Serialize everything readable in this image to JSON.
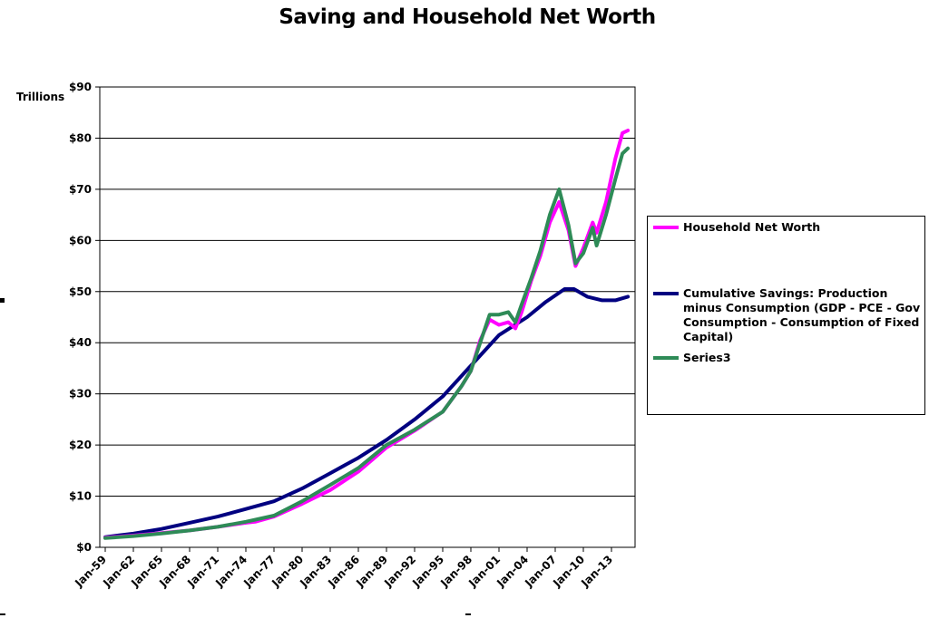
{
  "chart_data": {
    "type": "line",
    "title": "Saving and Household Net Worth",
    "ylabel": "Trillions",
    "xlabel": "",
    "ylim": [
      0,
      90
    ],
    "yticks": [
      "$0",
      "$10",
      "$20",
      "$30",
      "$40",
      "$50",
      "$60",
      "$70",
      "$80",
      "$90"
    ],
    "xticks": [
      "Jan-59",
      "Jan-62",
      "Jan-65",
      "Jan-68",
      "Jan-71",
      "Jan-74",
      "Jan-77",
      "Jan-80",
      "Jan-83",
      "Jan-86",
      "Jan-89",
      "Jan-92",
      "Jan-95",
      "Jan-98",
      "Jan-01",
      "Jan-04",
      "Jan-07",
      "Jan-10",
      "Jan-13"
    ],
    "grid": "horizontal",
    "legend_position": "right",
    "series": [
      {
        "name": "Household Net Worth",
        "color": "#ff00ff",
        "points": [
          [
            "1959-01",
            1.9
          ],
          [
            "1962-01",
            2.3
          ],
          [
            "1965-01",
            2.8
          ],
          [
            "1968-01",
            3.3
          ],
          [
            "1971-01",
            4.0
          ],
          [
            "1974-01",
            4.8
          ],
          [
            "1975-01",
            5.0
          ],
          [
            "1977-01",
            6.0
          ],
          [
            "1980-01",
            8.5
          ],
          [
            "1983-01",
            11.2
          ],
          [
            "1986-01",
            14.8
          ],
          [
            "1989-01",
            19.5
          ],
          [
            "1992-01",
            22.8
          ],
          [
            "1995-01",
            26.5
          ],
          [
            "1997-01",
            31.5
          ],
          [
            "1998-01",
            34.5
          ],
          [
            "1999-01",
            40.5
          ],
          [
            "2000-01",
            44.5
          ],
          [
            "2001-01",
            43.5
          ],
          [
            "2002-01",
            44.0
          ],
          [
            "2002-10",
            42.8
          ],
          [
            "2003-06",
            46.0
          ],
          [
            "2004-06",
            52.0
          ],
          [
            "2005-06",
            57.0
          ],
          [
            "2006-06",
            63.5
          ],
          [
            "2007-06",
            67.5
          ],
          [
            "2008-06",
            62.0
          ],
          [
            "2009-03",
            55.0
          ],
          [
            "2010-01",
            58.5
          ],
          [
            "2011-01",
            63.5
          ],
          [
            "2011-06",
            61.5
          ],
          [
            "2012-06",
            67.5
          ],
          [
            "2013-06",
            76.0
          ],
          [
            "2014-03",
            81.0
          ],
          [
            "2014-10",
            81.5
          ]
        ]
      },
      {
        "name": "Cumulative Savings: Production minus Consumption (GDP - PCE - Gov Consumption - Consumption of Fixed Capital)",
        "color": "#000080",
        "points": [
          [
            "1959-01",
            2.0
          ],
          [
            "1962-01",
            2.7
          ],
          [
            "1965-01",
            3.6
          ],
          [
            "1968-01",
            4.8
          ],
          [
            "1971-01",
            6.0
          ],
          [
            "1974-01",
            7.5
          ],
          [
            "1977-01",
            9.0
          ],
          [
            "1980-01",
            11.5
          ],
          [
            "1983-01",
            14.5
          ],
          [
            "1986-01",
            17.5
          ],
          [
            "1989-01",
            21.0
          ],
          [
            "1992-01",
            25.0
          ],
          [
            "1995-01",
            29.5
          ],
          [
            "1998-01",
            35.5
          ],
          [
            "2001-01",
            41.5
          ],
          [
            "2004-01",
            45.0
          ],
          [
            "2006-01",
            48.0
          ],
          [
            "2008-01",
            50.5
          ],
          [
            "2009-01",
            50.5
          ],
          [
            "2010-06",
            49.0
          ],
          [
            "2012-01",
            48.3
          ],
          [
            "2013-06",
            48.3
          ],
          [
            "2014-10",
            49.0
          ]
        ]
      },
      {
        "name": "Series3",
        "color": "#2e8b57",
        "points": [
          [
            "1959-01",
            1.8
          ],
          [
            "1962-01",
            2.2
          ],
          [
            "1965-01",
            2.7
          ],
          [
            "1968-01",
            3.3
          ],
          [
            "1971-01",
            4.0
          ],
          [
            "1974-01",
            5.0
          ],
          [
            "1977-01",
            6.2
          ],
          [
            "1980-01",
            9.0
          ],
          [
            "1983-01",
            12.2
          ],
          [
            "1986-01",
            15.5
          ],
          [
            "1989-01",
            20.0
          ],
          [
            "1992-01",
            23.0
          ],
          [
            "1995-01",
            26.5
          ],
          [
            "1997-01",
            31.5
          ],
          [
            "1998-01",
            34.5
          ],
          [
            "1999-01",
            40.0
          ],
          [
            "2000-01",
            45.5
          ],
          [
            "2001-01",
            45.5
          ],
          [
            "2002-01",
            46.0
          ],
          [
            "2002-10",
            44.0
          ],
          [
            "2003-06",
            47.5
          ],
          [
            "2004-06",
            52.5
          ],
          [
            "2005-06",
            58.0
          ],
          [
            "2006-06",
            65.0
          ],
          [
            "2007-06",
            70.0
          ],
          [
            "2008-06",
            63.0
          ],
          [
            "2009-03",
            55.5
          ],
          [
            "2010-01",
            57.5
          ],
          [
            "2011-01",
            62.5
          ],
          [
            "2011-06",
            59.0
          ],
          [
            "2012-06",
            65.0
          ],
          [
            "2013-06",
            72.0
          ],
          [
            "2014-03",
            77.0
          ],
          [
            "2014-10",
            78.0
          ]
        ]
      }
    ]
  }
}
